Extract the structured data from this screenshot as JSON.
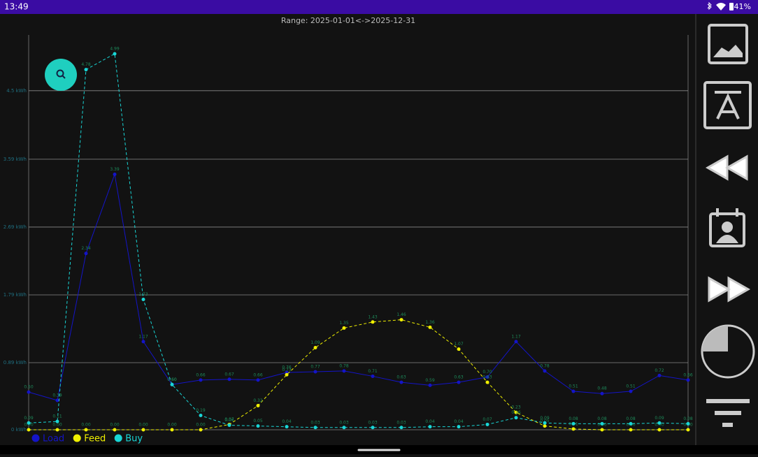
{
  "status_bar": {
    "time": "13:49",
    "battery": "41%"
  },
  "chart_data": {
    "type": "line",
    "title": "Range: 2025-01-01<->2025-12-31",
    "categories": [
      null,
      null,
      null,
      null,
      null,
      null,
      null,
      null,
      null,
      null,
      null,
      null,
      null,
      null,
      null,
      null,
      null,
      null,
      null,
      null,
      null,
      null,
      null,
      null
    ],
    "ylim": [
      0,
      5.24
    ],
    "yticks": [
      {
        "value": 0,
        "label": "0 kWh"
      },
      {
        "value": 0.89,
        "label": "0.89 kWh"
      },
      {
        "value": 1.79,
        "label": "1.79 kWh"
      },
      {
        "value": 2.69,
        "label": "2.69 kWh"
      },
      {
        "value": 3.59,
        "label": "3.59 kWh"
      },
      {
        "value": 4.5,
        "label": "4.5 kWh"
      }
    ],
    "grid": true,
    "series": [
      {
        "name": "Load",
        "color": "#1414c8",
        "dashed": false,
        "values": [
          0.5,
          0.39,
          2.34,
          3.39,
          1.17,
          0.6,
          0.66,
          0.67,
          0.66,
          0.76,
          0.77,
          0.78,
          0.71,
          0.63,
          0.59,
          0.63,
          0.7,
          1.17,
          0.78,
          0.51,
          0.48,
          0.51,
          0.72,
          0.66
        ],
        "value_labels": [
          "0.50",
          "0.39",
          "2.34",
          "3.39",
          "1.17",
          "0.60",
          "0.66",
          "0.67",
          "0.66",
          "0.76",
          "0.77",
          "0.78",
          "0.71",
          "0.63",
          "0.59",
          "0.63",
          "0.70",
          "1.17",
          "0.78",
          "0.51",
          "0.48",
          "0.51",
          "0.72",
          "0.66"
        ]
      },
      {
        "name": "Feed",
        "color": "#f0f000",
        "dashed": true,
        "values": [
          0,
          0,
          0,
          0,
          0,
          0,
          0,
          0.07,
          0.32,
          0.73,
          1.09,
          1.35,
          1.43,
          1.46,
          1.36,
          1.07,
          0.63,
          0.23,
          0.05,
          0.01,
          0,
          0,
          0,
          0
        ],
        "value_labels": [
          "0.00",
          "0.00",
          "0.00",
          "0.00",
          "0.00",
          "0.00",
          "0.00",
          "0.07",
          "0.32",
          "0.73",
          "1.09",
          "1.35",
          "1.43",
          "1.46",
          "1.36",
          "1.07",
          "0.63",
          "0.23",
          "0.05",
          "0.01",
          "0.00",
          "0.00",
          "0.00",
          "0.00"
        ]
      },
      {
        "name": "Buy",
        "color": "#19d6d6",
        "dashed": true,
        "values": [
          0.09,
          0.11,
          4.78,
          4.99,
          1.73,
          0.6,
          0.19,
          0.06,
          0.05,
          0.04,
          0.03,
          0.03,
          0.03,
          0.03,
          0.04,
          0.04,
          0.07,
          0.16,
          0.09,
          0.08,
          0.08,
          0.08,
          0.09,
          0.08
        ],
        "value_labels": [
          "0.09",
          "0.11",
          "4.78",
          "4.99",
          "1.73",
          "0.60",
          "0.19",
          "0.06",
          "0.05",
          "0.04",
          "0.03",
          "0.03",
          "0.03",
          "0.03",
          "0.04",
          "0.04",
          "0.07",
          "0.16",
          "0.09",
          "0.08",
          "0.08",
          "0.08",
          "0.09",
          "0.08"
        ]
      }
    ]
  }
}
